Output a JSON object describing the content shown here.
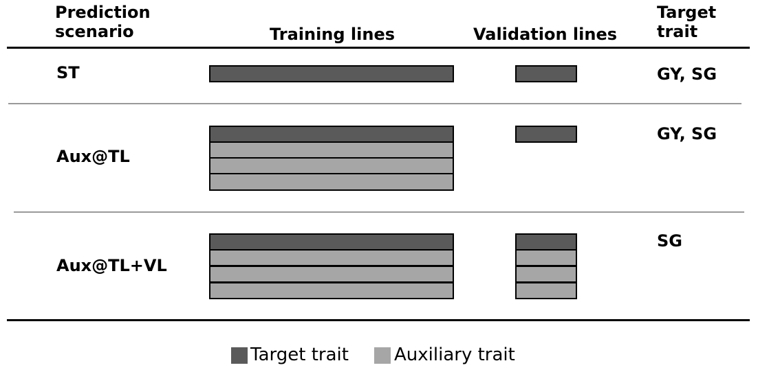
{
  "headers": {
    "scenario": "Prediction scenario",
    "training": "Training lines",
    "validation": "Validation lines",
    "target": "Target trait"
  },
  "scenarios": [
    {
      "name": "ST",
      "target_traits": "GY, SG",
      "training": [
        "target"
      ],
      "validation": [
        "target"
      ]
    },
    {
      "name": "Aux@TL",
      "target_traits": "GY, SG",
      "training": [
        "target",
        "auxiliary",
        "auxiliary",
        "auxiliary"
      ],
      "validation": [
        "target"
      ]
    },
    {
      "name": "Aux@TL+VL",
      "target_traits": "SG",
      "training": [
        "target",
        "auxiliary",
        "auxiliary",
        "auxiliary"
      ],
      "validation": [
        "target",
        "auxiliary",
        "auxiliary",
        "auxiliary"
      ]
    }
  ],
  "legend": {
    "target": "Target trait",
    "auxiliary": "Auxiliary trait"
  },
  "colors": {
    "target": "#5a5a5a",
    "auxiliary": "#a6a6a6"
  }
}
